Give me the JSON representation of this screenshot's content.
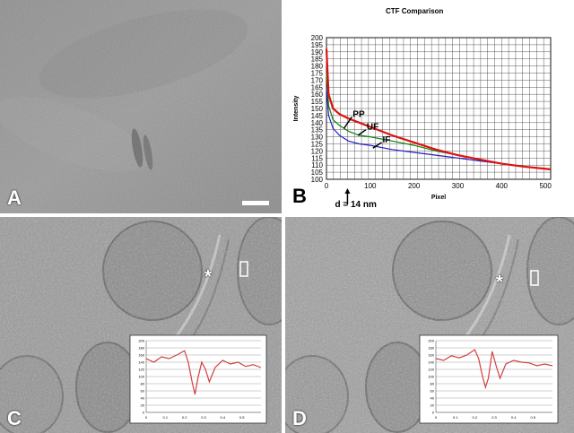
{
  "figure": {
    "panels": [
      {
        "id": "A",
        "label": "A"
      },
      {
        "id": "B",
        "label": "B"
      },
      {
        "id": "C",
        "label": "C"
      },
      {
        "id": "D",
        "label": "D"
      }
    ],
    "asterisk": "*"
  },
  "chart_data": [
    {
      "type": "line",
      "title": "CTF Comparison",
      "xlabel": "Pixel",
      "ylabel": "Intensity",
      "xlim": [
        0,
        512
      ],
      "ylim": [
        100,
        200
      ],
      "x_ticks": [
        0,
        100,
        200,
        300,
        400,
        500
      ],
      "y_ticks": [
        100,
        105,
        110,
        115,
        120,
        125,
        130,
        135,
        140,
        145,
        150,
        155,
        160,
        165,
        170,
        175,
        180,
        185,
        190,
        195,
        200
      ],
      "grid": true,
      "colors": {
        "PP": "#e01010",
        "UF": "#108010",
        "IF": "#2020c0"
      },
      "series": [
        {
          "name": "PP",
          "x": [
            0,
            5,
            15,
            30,
            50,
            75,
            100,
            150,
            200,
            250,
            300,
            350,
            400,
            450,
            512
          ],
          "y": [
            192,
            160,
            150,
            146,
            143,
            140,
            137,
            131,
            126,
            121,
            117,
            114,
            111,
            109,
            107
          ]
        },
        {
          "name": "UF",
          "x": [
            0,
            5,
            15,
            30,
            50,
            75,
            100,
            150,
            200,
            250,
            300,
            350,
            400,
            450,
            512
          ],
          "y": [
            175,
            152,
            142,
            138,
            134,
            131,
            130,
            127,
            124,
            120,
            117,
            114,
            111,
            109,
            107
          ]
        },
        {
          "name": "IF",
          "x": [
            0,
            5,
            15,
            30,
            50,
            75,
            100,
            150,
            200,
            250,
            300,
            350,
            400,
            450,
            512
          ],
          "y": [
            165,
            145,
            136,
            131,
            127,
            125,
            124,
            121,
            119,
            117,
            115,
            113,
            111,
            109,
            107
          ]
        }
      ],
      "annotations": [
        {
          "text": "PP",
          "x": 60,
          "y": 144
        },
        {
          "text": "UF",
          "x": 92,
          "y": 135
        },
        {
          "text": "IF",
          "x": 128,
          "y": 126
        },
        {
          "text": "d = 14 nm",
          "x": 48,
          "y": 92
        }
      ]
    },
    {
      "type": "line",
      "panel": "C",
      "xlim": [
        0,
        0.6
      ],
      "ylim": [
        0,
        200
      ],
      "x_ticks": [
        "0",
        "0.1",
        "0.2",
        "0.3",
        "0.4",
        "0.5"
      ],
      "y_ticks": [
        "0",
        "20",
        "40",
        "60",
        "80",
        "100",
        "120",
        "140",
        "160",
        "180",
        "200"
      ],
      "color": "#d04040",
      "series": [
        {
          "x": [
            0,
            0.04,
            0.08,
            0.12,
            0.16,
            0.2,
            0.22,
            0.24,
            0.255,
            0.27,
            0.29,
            0.31,
            0.33,
            0.36,
            0.4,
            0.44,
            0.48,
            0.52,
            0.56,
            0.6
          ],
          "y": [
            150,
            140,
            155,
            150,
            160,
            172,
            140,
            85,
            50,
            95,
            140,
            120,
            85,
            125,
            145,
            135,
            140,
            128,
            133,
            125
          ]
        }
      ]
    },
    {
      "type": "line",
      "panel": "D",
      "xlim": [
        0,
        0.6
      ],
      "ylim": [
        0,
        200
      ],
      "x_ticks": [
        "0",
        "0.1",
        "0.2",
        "0.3",
        "0.4",
        "0.5"
      ],
      "y_ticks": [
        "0",
        "20",
        "40",
        "60",
        "80",
        "100",
        "120",
        "140",
        "160",
        "180",
        "200"
      ],
      "color": "#d04040",
      "series": [
        {
          "x": [
            0,
            0.04,
            0.08,
            0.12,
            0.16,
            0.2,
            0.22,
            0.24,
            0.255,
            0.27,
            0.29,
            0.31,
            0.33,
            0.36,
            0.4,
            0.44,
            0.48,
            0.52,
            0.56,
            0.6
          ],
          "y": [
            150,
            145,
            158,
            152,
            160,
            175,
            150,
            100,
            70,
            95,
            170,
            130,
            95,
            135,
            145,
            140,
            138,
            130,
            135,
            130
          ]
        }
      ]
    }
  ]
}
